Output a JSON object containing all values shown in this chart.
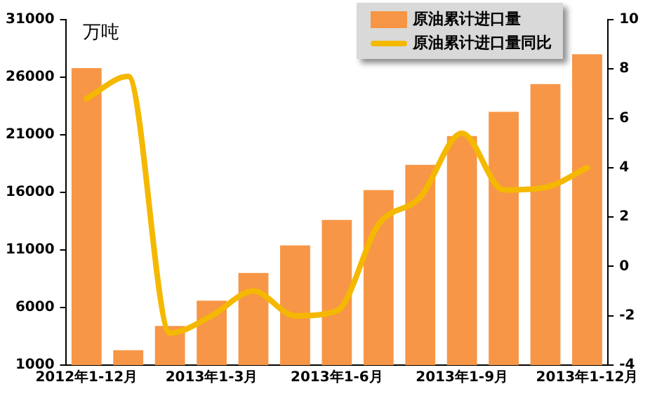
{
  "chart_data": {
    "type": "bar",
    "ylabel": "万吨",
    "categories": [
      "2012年1-12月",
      null,
      null,
      "2013年1-3月",
      null,
      null,
      "2013年1-6月",
      null,
      null,
      "2013年1-9月",
      null,
      null,
      "2013年1-12月"
    ],
    "series": [
      {
        "name": "原油累计进口量",
        "color": "#f79646",
        "values": [
          26800,
          2300,
          4400,
          6600,
          9000,
          11400,
          13600,
          16200,
          18400,
          20900,
          23000,
          25400,
          28000
        ]
      },
      {
        "name": "原油累计进口量同比",
        "type": "line",
        "axis": "y2",
        "color": "#f5b800",
        "values": [
          6.8,
          7.7,
          -2.7,
          -2.0,
          -1.0,
          -2.0,
          -1.8,
          1.7,
          2.8,
          5.4,
          3.1,
          3.2,
          4.0
        ]
      }
    ],
    "ylim": [
      1000,
      31000
    ],
    "yticks": [
      1000,
      6000,
      11000,
      16000,
      21000,
      26000,
      31000
    ],
    "y2lim": [
      -4,
      10
    ],
    "y2ticks": [
      -4,
      -2,
      0,
      2,
      4,
      6,
      8,
      10
    ],
    "grid": false,
    "legend": "top right",
    "marker": "none",
    "line_style": "solid"
  }
}
